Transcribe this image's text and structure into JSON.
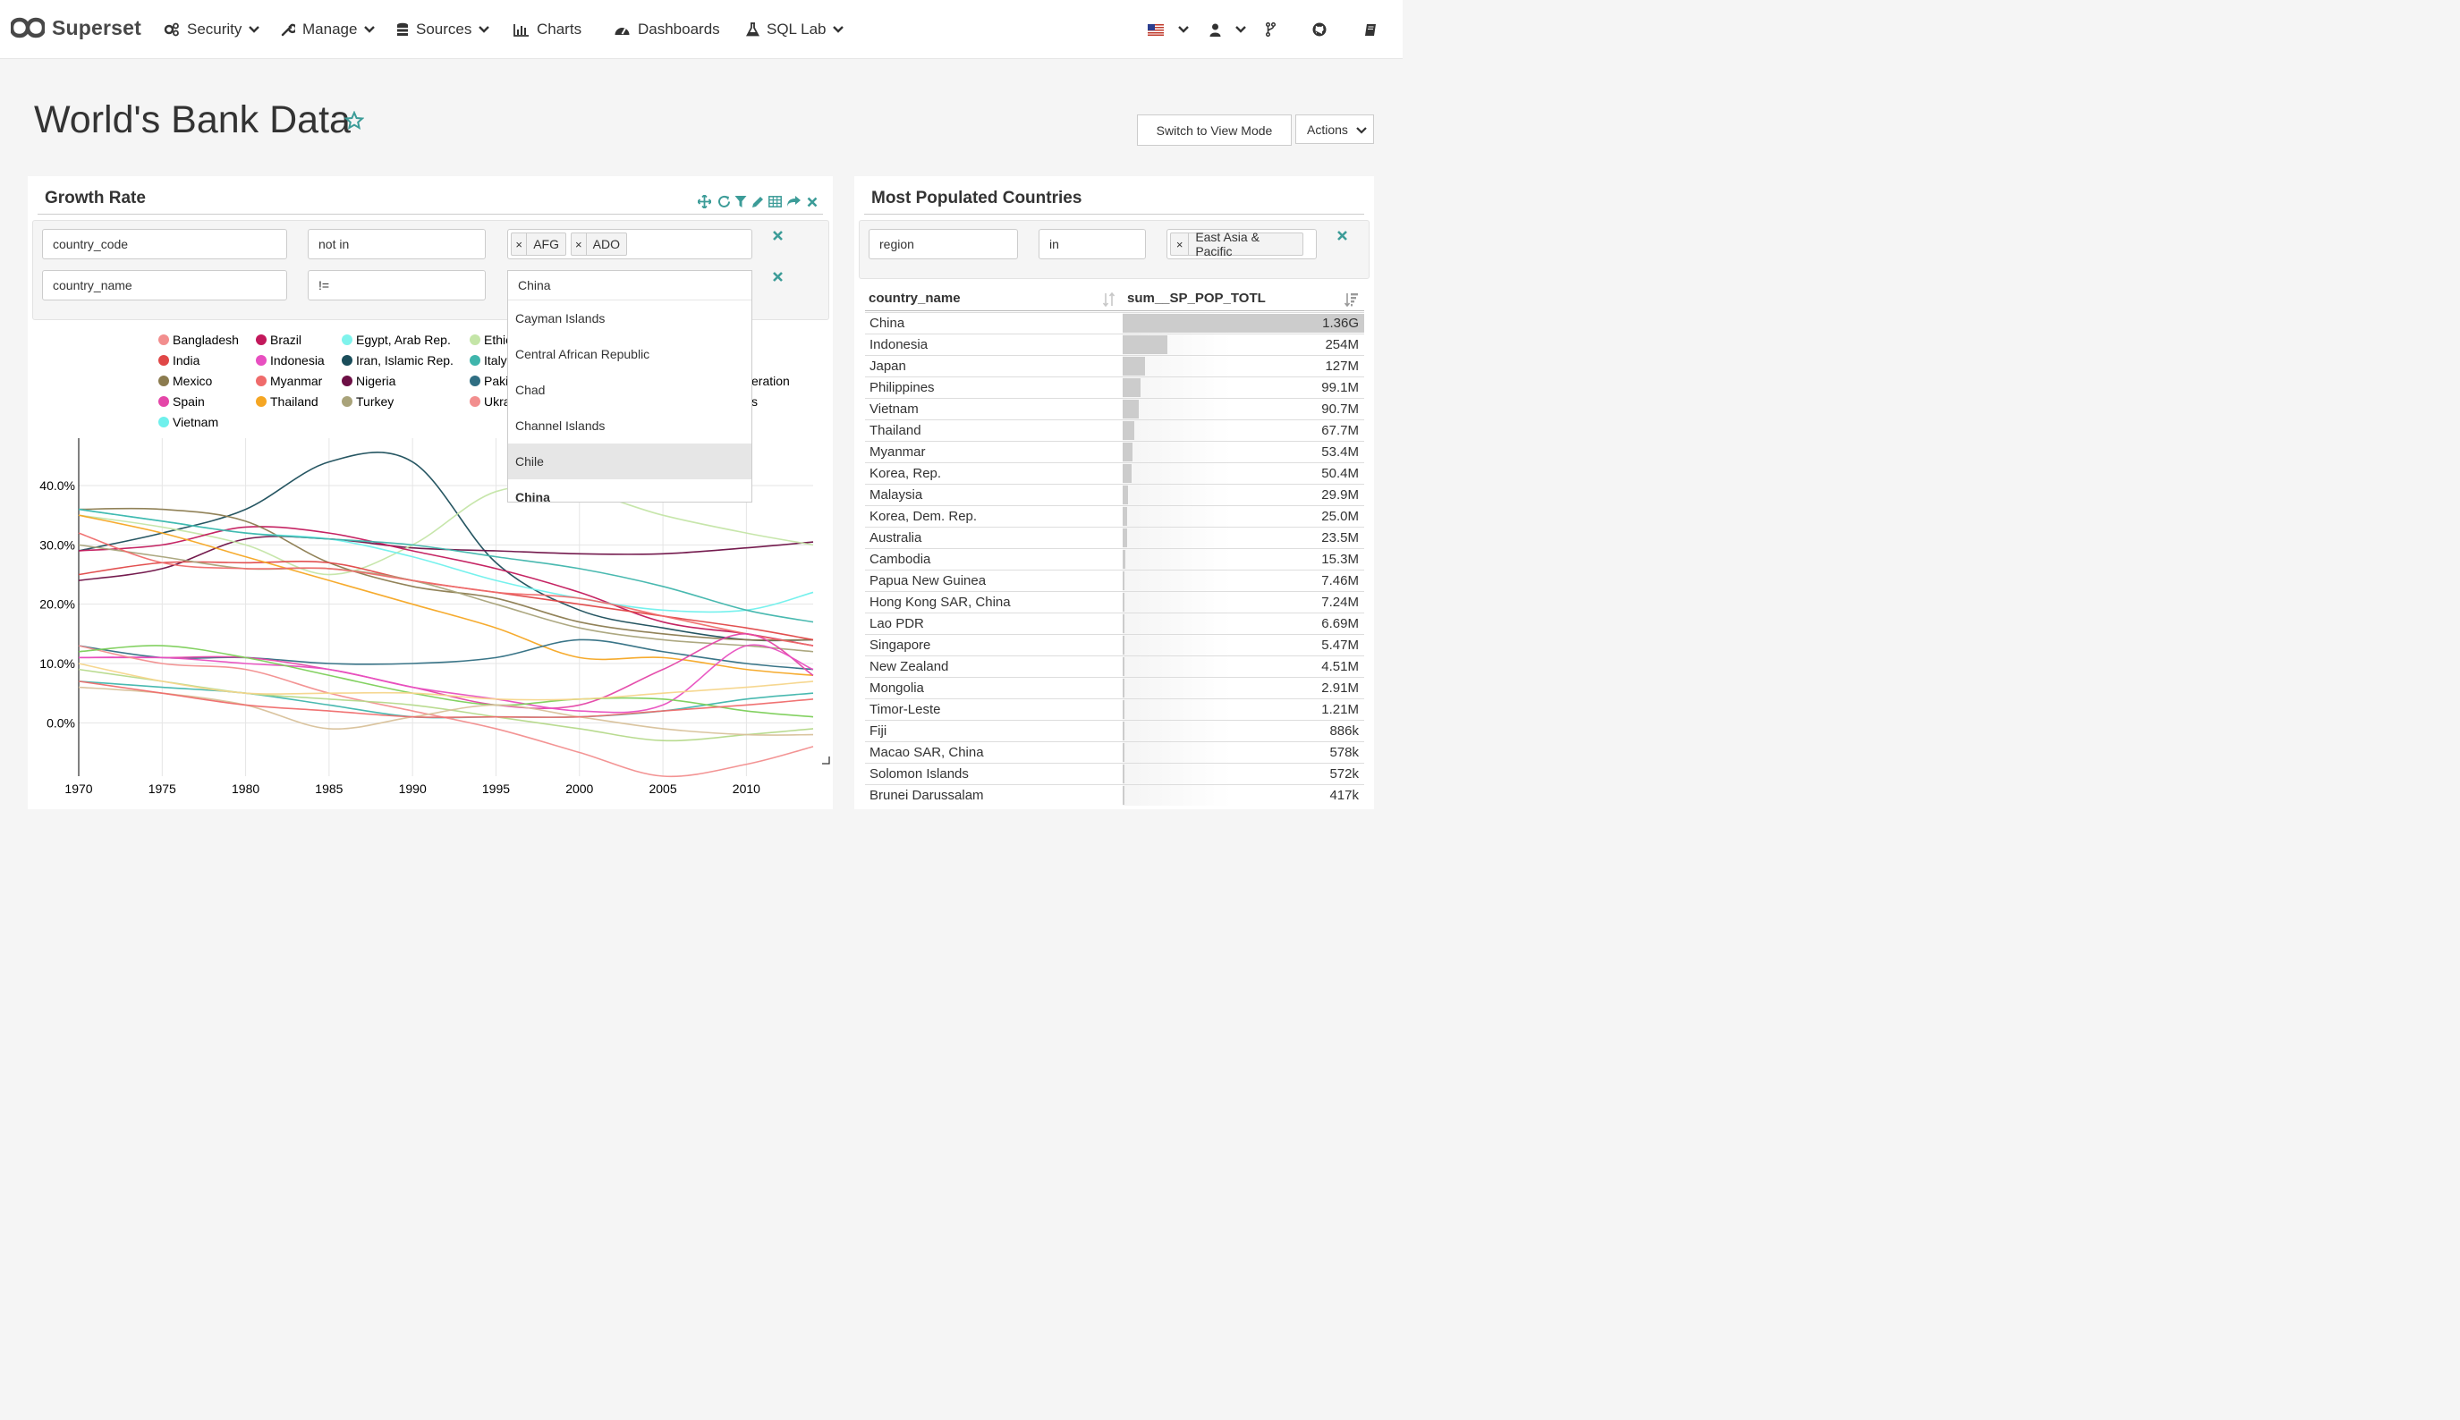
{
  "brand": {
    "name": "Superset"
  },
  "nav": {
    "security": "Security",
    "manage": "Manage",
    "sources": "Sources",
    "charts": "Charts",
    "dashboards": "Dashboards",
    "sql_lab": "SQL Lab"
  },
  "dashboard": {
    "title": "World's Bank Data",
    "switch_mode_label": "Switch to View Mode",
    "actions_label": "Actions"
  },
  "growth_panel": {
    "title": "Growth Rate",
    "filters": [
      {
        "column": "country_code",
        "operator": "not in",
        "values": [
          "AFG",
          "ADO"
        ]
      },
      {
        "column": "country_name",
        "operator": "!=",
        "search": "China"
      }
    ],
    "dropdown_options": [
      "Cayman Islands",
      "Central African Republic",
      "Chad",
      "Channel Islands",
      "Chile",
      "China"
    ],
    "dropdown_highlighted": "Chile",
    "legend_visible": [
      {
        "name": "Bangladesh",
        "color": "#f28e8e"
      },
      {
        "name": "Brazil",
        "color": "#c2185b"
      },
      {
        "name": "Egypt, Arab Rep.",
        "color": "#7ff3ec"
      },
      {
        "name": "Ethic",
        "color": "#c4e5a7"
      },
      {
        "name": "India",
        "color": "#e04747"
      },
      {
        "name": "Indonesia",
        "color": "#e84fc0"
      },
      {
        "name": "Iran, Islamic Rep.",
        "color": "#1a4d5a"
      },
      {
        "name": "Italy",
        "color": "#3fb5ac"
      },
      {
        "name": "Mexico",
        "color": "#8b7b4f"
      },
      {
        "name": "Myanmar",
        "color": "#ef6b6b"
      },
      {
        "name": "Nigeria",
        "color": "#6d0f45"
      },
      {
        "name": "Paki",
        "color": "#2f6e82"
      },
      {
        "name": "Spain",
        "color": "#e446a8"
      },
      {
        "name": "Thailand",
        "color": "#f5a623"
      },
      {
        "name": "Turkey",
        "color": "#a9a37a"
      },
      {
        "name": "Ukra",
        "color": "#f28e8e"
      },
      {
        "name": "Vietnam",
        "color": "#6ff0ec"
      }
    ],
    "legend_partial_text": [
      "eration",
      "s"
    ]
  },
  "chart_data": {
    "type": "line",
    "xlim": [
      1970,
      2014
    ],
    "ylim": [
      -9,
      48
    ],
    "x_ticks": [
      1970,
      1975,
      1980,
      1985,
      1990,
      1995,
      2000,
      2005,
      2010
    ],
    "y_ticks": [
      {
        "value": 0,
        "label": "0.0%"
      },
      {
        "value": 10,
        "label": "10.0%"
      },
      {
        "value": 20,
        "label": "20.0%"
      },
      {
        "value": 30,
        "label": "30.0%"
      },
      {
        "value": 40,
        "label": "40.0%"
      }
    ],
    "x": [
      1970,
      1975,
      1980,
      1985,
      1990,
      1995,
      2000,
      2005,
      2010,
      2014
    ],
    "series": [
      {
        "name": "Iran, Islamic Rep.",
        "color": "#1a4d5a",
        "values": [
          29,
          32,
          36,
          44,
          44,
          27,
          19,
          16,
          14,
          14
        ]
      },
      {
        "name": "Nigeria",
        "color": "#6d0f45",
        "values": [
          24,
          26,
          31,
          31,
          29.5,
          29,
          28.5,
          28.5,
          29.5,
          30.5
        ]
      },
      {
        "name": "Egypt, Arab Rep.",
        "color": "#c4e5a7",
        "values": [
          35,
          33,
          30,
          25,
          30,
          39,
          39,
          35,
          32,
          30
        ]
      },
      {
        "name": "Brazil",
        "color": "#c2185b",
        "values": [
          29,
          30,
          33,
          32,
          29,
          26,
          22,
          17,
          15,
          13
        ]
      },
      {
        "name": "Mexico",
        "color": "#8b7b4f",
        "values": [
          36,
          36,
          34,
          27,
          23,
          21,
          17,
          15,
          14,
          14
        ]
      },
      {
        "name": "India",
        "color": "#e04747",
        "values": [
          25,
          27,
          27,
          27,
          24,
          22,
          20,
          18,
          16,
          14
        ]
      },
      {
        "name": "Vietnam",
        "color": "#6ff0ec",
        "values": [
          36,
          34,
          32,
          31,
          28,
          24,
          21,
          19,
          19,
          22
        ]
      },
      {
        "name": "Italy",
        "color": "#3fb5ac",
        "values": [
          36,
          34,
          32,
          31,
          30,
          28,
          26,
          23,
          19,
          17
        ]
      },
      {
        "name": "Turkey",
        "color": "#a9a37a",
        "values": [
          30,
          28,
          26,
          26,
          24,
          20,
          16,
          14,
          13,
          12
        ]
      },
      {
        "name": "Thailand",
        "color": "#f5a623",
        "values": [
          35,
          32,
          28,
          24,
          20,
          16,
          11,
          11,
          9,
          8
        ]
      },
      {
        "name": "Myanmar",
        "color": "#ef6b6b",
        "values": [
          32,
          27,
          26,
          26,
          24,
          22,
          21,
          18,
          15,
          13
        ]
      },
      {
        "name": "Ukra",
        "color": "#2f6e82",
        "values": [
          13,
          11,
          11,
          10,
          10,
          11,
          14,
          12,
          10,
          9
        ]
      },
      {
        "name": "Spain",
        "color": "#e446a8",
        "values": [
          11,
          11,
          11,
          9,
          6,
          3,
          3,
          9,
          15,
          8
        ]
      },
      {
        "name": "Indonesia",
        "color": "#e84fc0",
        "values": [
          11,
          11,
          10,
          9,
          6,
          4,
          2,
          3,
          13,
          9
        ]
      },
      {
        "name": "Paki",
        "color": "#3fb5ac",
        "values": [
          7,
          6,
          5,
          3,
          1,
          1,
          1,
          2,
          4,
          5
        ]
      },
      {
        "name": "Bangladesh",
        "color": "#f28e8e",
        "values": [
          13,
          10,
          9,
          5,
          2,
          -1,
          -5,
          -9,
          -7,
          -4
        ]
      },
      {
        "name": "Ethic",
        "color": "#7ccf58",
        "values": [
          12,
          13,
          11,
          8,
          5,
          3,
          4,
          4,
          2,
          1
        ]
      },
      {
        "name": "Ukra",
        "color": "#b5d98a",
        "values": [
          9,
          7,
          5,
          4,
          3,
          1,
          -1,
          -3,
          -2,
          -1
        ]
      },
      {
        "name": "Egypt, Arab Rep.",
        "color": "#d8c19a",
        "values": [
          6,
          5,
          3,
          -1,
          1,
          3,
          1,
          -1,
          -2,
          -2
        ]
      },
      {
        "name": "Brazil",
        "color": "#f5d58a",
        "values": [
          10,
          7,
          5,
          5,
          5,
          4,
          4,
          5,
          6,
          7
        ]
      },
      {
        "name": "Myanmar",
        "color": "#ef6b6b",
        "values": [
          7,
          5,
          3,
          2,
          1,
          1,
          1,
          2,
          3,
          4
        ]
      }
    ]
  },
  "populated_panel": {
    "title": "Most Populated Countries",
    "filter": {
      "column": "region",
      "operator": "in",
      "values": [
        "East Asia & Pacific"
      ]
    },
    "columns": [
      "country_name",
      "sum__SP_POP_TOTL"
    ],
    "rows": [
      {
        "country": "China",
        "value": "1.36G",
        "population": 1360
      },
      {
        "country": "Indonesia",
        "value": "254M",
        "population": 254
      },
      {
        "country": "Japan",
        "value": "127M",
        "population": 127
      },
      {
        "country": "Philippines",
        "value": "99.1M",
        "population": 99.1
      },
      {
        "country": "Vietnam",
        "value": "90.7M",
        "population": 90.7
      },
      {
        "country": "Thailand",
        "value": "67.7M",
        "population": 67.7
      },
      {
        "country": "Myanmar",
        "value": "53.4M",
        "population": 53.4
      },
      {
        "country": "Korea, Rep.",
        "value": "50.4M",
        "population": 50.4
      },
      {
        "country": "Malaysia",
        "value": "29.9M",
        "population": 29.9
      },
      {
        "country": "Korea, Dem. Rep.",
        "value": "25.0M",
        "population": 25.0
      },
      {
        "country": "Australia",
        "value": "23.5M",
        "population": 23.5
      },
      {
        "country": "Cambodia",
        "value": "15.3M",
        "population": 15.3
      },
      {
        "country": "Papua New Guinea",
        "value": "7.46M",
        "population": 7.46
      },
      {
        "country": "Hong Kong SAR, China",
        "value": "7.24M",
        "population": 7.24
      },
      {
        "country": "Lao PDR",
        "value": "6.69M",
        "population": 6.69
      },
      {
        "country": "Singapore",
        "value": "5.47M",
        "population": 5.47
      },
      {
        "country": "New Zealand",
        "value": "4.51M",
        "population": 4.51
      },
      {
        "country": "Mongolia",
        "value": "2.91M",
        "population": 2.91
      },
      {
        "country": "Timor-Leste",
        "value": "1.21M",
        "population": 1.21
      },
      {
        "country": "Fiji",
        "value": "886k",
        "population": 0.886
      },
      {
        "country": "Macao SAR, China",
        "value": "578k",
        "population": 0.578
      },
      {
        "country": "Solomon Islands",
        "value": "572k",
        "population": 0.572
      },
      {
        "country": "Brunei Darussalam",
        "value": "417k",
        "population": 0.417
      }
    ]
  }
}
